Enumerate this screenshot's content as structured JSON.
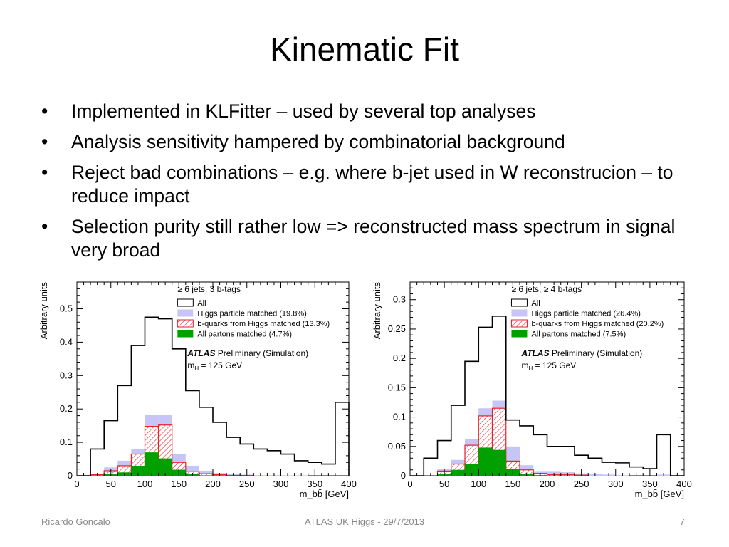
{
  "slide": {
    "title": "Kinematic Fit",
    "bullets": [
      "Implemented in KLFitter – used by several top analyses",
      "Analysis sensitivity hampered by combinatorial background",
      "Reject bad combinations – e.g. where b-jet used in W reconstrucion – to reduce impact",
      "Selection purity still rather low => reconstructed mass spectrum in signal very broad"
    ]
  },
  "footer": {
    "left": "Ricardo Goncalo",
    "center": "ATLAS UK Higgs - 29/7/2013",
    "right": "7"
  },
  "colors": {
    "all": "#000000",
    "higgs_particle": "#c6c6f6",
    "bquarks": "#e8202a",
    "partons": "#00a000"
  },
  "chart_data": [
    {
      "type": "histogram",
      "category_label": "≥ 6 jets, 3 b-tags",
      "xlabel": "m_bb̄ [GeV]",
      "ylabel": "Arbitrary units",
      "xlim": [
        0,
        400
      ],
      "ylim": [
        0,
        0.58
      ],
      "xticks": [
        0,
        50,
        100,
        150,
        200,
        250,
        300,
        350,
        400
      ],
      "yticks": [
        0,
        0.1,
        0.2,
        0.3,
        0.4,
        0.5
      ],
      "bin_edges": [
        0,
        20,
        40,
        60,
        80,
        100,
        120,
        140,
        160,
        180,
        200,
        220,
        240,
        260,
        280,
        300,
        320,
        340,
        360,
        380,
        400
      ],
      "atlas_label": "ATLAS",
      "atlas_sublabel": "Preliminary (Simulation)",
      "mass_label": "m_H = 125 GeV",
      "legend_position": "top-right",
      "series": [
        {
          "name": "All",
          "style": "line",
          "values": [
            0,
            0.08,
            0.165,
            0.27,
            0.39,
            0.475,
            0.47,
            0.38,
            0.255,
            0.205,
            0.16,
            0.115,
            0.095,
            0.08,
            0.075,
            0.065,
            0.045,
            0.04,
            0.035,
            0.22
          ]
        },
        {
          "name": "Higgs particle matched (19.8%)",
          "style": "fill",
          "values": [
            0,
            0.005,
            0.025,
            0.045,
            0.08,
            0.182,
            0.182,
            0.065,
            0.03,
            0.015,
            0.008,
            0.005,
            0.003,
            0.002,
            0.002,
            0.001,
            0.001,
            0,
            0,
            0
          ]
        },
        {
          "name": "b-quarks from Higgs matched (13.3%)",
          "style": "hatch",
          "values": [
            0,
            0.003,
            0.015,
            0.03,
            0.065,
            0.148,
            0.152,
            0.04,
            0.012,
            0.006,
            0.003,
            0.001,
            0.001,
            0,
            0,
            0,
            0,
            0,
            0,
            0
          ]
        },
        {
          "name": "All partons matched (4.7%)",
          "style": "fill",
          "values": [
            0,
            0,
            0.005,
            0.01,
            0.03,
            0.07,
            0.052,
            0.018,
            0.005,
            0.001,
            0,
            0,
            0,
            0,
            0,
            0,
            0,
            0,
            0,
            0
          ]
        }
      ]
    },
    {
      "type": "histogram",
      "category_label": "≥ 6 jets, ≥ 4 b-tags",
      "xlabel": "m_bb̄ [GeV]",
      "ylabel": "Arbitrary units",
      "xlim": [
        0,
        400
      ],
      "ylim": [
        0,
        0.33
      ],
      "xticks": [
        0,
        50,
        100,
        150,
        200,
        250,
        300,
        350,
        400
      ],
      "yticks": [
        0,
        0.05,
        0.1,
        0.15,
        0.2,
        0.25,
        0.3
      ],
      "bin_edges": [
        0,
        20,
        40,
        60,
        80,
        100,
        120,
        140,
        160,
        180,
        200,
        220,
        240,
        260,
        280,
        300,
        320,
        340,
        360,
        380,
        400
      ],
      "atlas_label": "ATLAS",
      "atlas_sublabel": "Preliminary (Simulation)",
      "mass_label": "m_H = 125 GeV",
      "legend_position": "top-right",
      "series": [
        {
          "name": "All",
          "style": "line",
          "values": [
            0,
            0.03,
            0.06,
            0.12,
            0.195,
            0.253,
            0.272,
            0.095,
            0.085,
            0.07,
            0.05,
            0.05,
            0.035,
            0.03,
            0.023,
            0.022,
            0.015,
            0.012,
            0.07,
            0
          ]
        },
        {
          "name": "Higgs particle matched (26.4%)",
          "style": "fill",
          "values": [
            0,
            0,
            0.012,
            0.027,
            0.063,
            0.115,
            0.128,
            0.05,
            0.018,
            0.008,
            0.008,
            0.006,
            0.004,
            0.003,
            0.002,
            0.001,
            0,
            0,
            0.002,
            0
          ]
        },
        {
          "name": "b-quarks from Higgs matched (20.2%)",
          "style": "hatch",
          "values": [
            0,
            0,
            0.008,
            0.02,
            0.052,
            0.102,
            0.115,
            0.025,
            0.01,
            0.004,
            0.002,
            0.002,
            0.001,
            0,
            0,
            0,
            0,
            0,
            0,
            0
          ]
        },
        {
          "name": "All partons matched (7.5%)",
          "style": "fill",
          "values": [
            0,
            0,
            0.003,
            0.01,
            0.02,
            0.048,
            0.044,
            0.012,
            0.003,
            0.001,
            0,
            0,
            0,
            0,
            0,
            0,
            0,
            0,
            0,
            0
          ]
        }
      ]
    }
  ]
}
